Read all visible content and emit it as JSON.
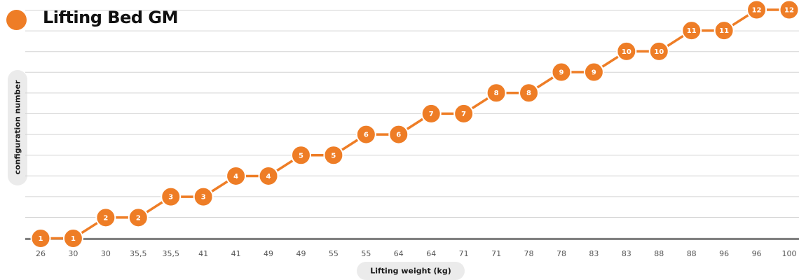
{
  "title": "Lifting Bed GM",
  "colors": {
    "accent": "#ee7d26",
    "grid": "#d4d4d4",
    "axis": "#444444",
    "pill": "#ebebeb"
  },
  "chart_data": {
    "type": "line",
    "title": "Lifting Bed GM",
    "xlabel": "Lifting weight (kg)",
    "ylabel": "configuration number",
    "categories": [
      "26",
      "30",
      "30",
      "35,5",
      "35,5",
      "41",
      "41",
      "49",
      "49",
      "55",
      "55",
      "64",
      "64",
      "71",
      "71",
      "78",
      "78",
      "83",
      "83",
      "88",
      "88",
      "96",
      "96",
      "100"
    ],
    "series": [
      {
        "values": [
          1,
          1,
          2,
          2,
          3,
          3,
          4,
          4,
          5,
          5,
          6,
          6,
          7,
          7,
          8,
          8,
          9,
          9,
          10,
          10,
          11,
          11,
          12,
          12
        ]
      }
    ],
    "ylim": [
      1,
      12
    ],
    "grid": true,
    "data_labels": true
  }
}
